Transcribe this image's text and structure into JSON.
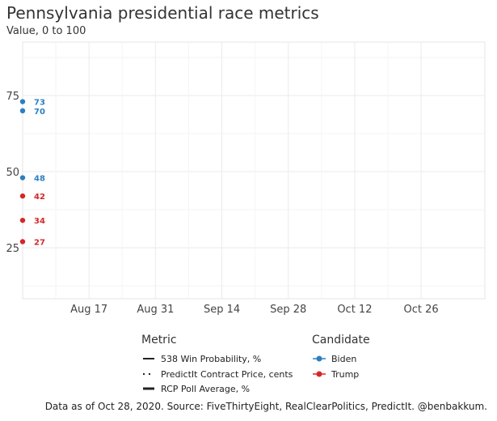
{
  "title": "Pennsylvania presidential race metrics",
  "subtitle": "Value, 0 to 100",
  "caption": "Data as of Oct 28, 2020. Source: FiveThirtyEight, RealClearPolitics, PredictIt. @benbakkum.",
  "legend": {
    "metric_title": "Metric",
    "metric_items": [
      "538 Win Probability, %",
      "PredictIt Contract Price, cents",
      "RCP Poll Average, %"
    ],
    "candidate_title": "Candidate",
    "candidate_items": [
      {
        "name": "Biden",
        "color": "#2b7fc1"
      },
      {
        "name": "Trump",
        "color": "#d62728"
      }
    ]
  },
  "chart_data": {
    "type": "scatter",
    "title": "Pennsylvania presidential race metrics",
    "subtitle": "Value, 0 to 100",
    "xlabel": "",
    "ylabel": "",
    "x_ticks": [
      "Aug 17",
      "Aug 31",
      "Sep 14",
      "Sep 28",
      "Oct 12",
      "Oct 26"
    ],
    "y_ticks": [
      25,
      50,
      75
    ],
    "grid": true,
    "legend_position": "bottom",
    "series": [
      {
        "name": "Biden",
        "color": "#2b7fc1",
        "x": "Aug 3",
        "values": [
          73,
          70,
          48
        ]
      },
      {
        "name": "Trump",
        "color": "#d62728",
        "x": "Aug 3",
        "values": [
          42,
          34,
          27
        ]
      }
    ]
  }
}
